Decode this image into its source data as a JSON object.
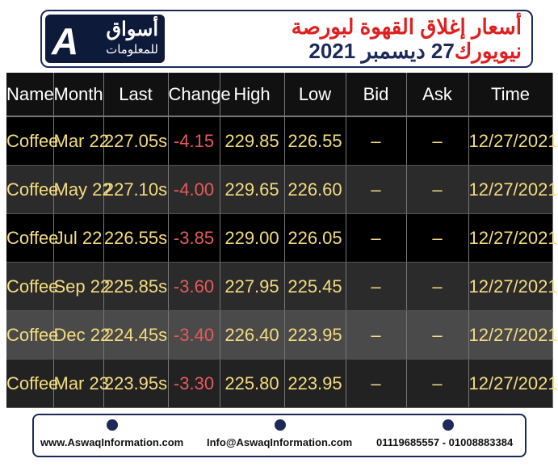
{
  "header": {
    "logo_main": "أسواق",
    "logo_sub": "للمعلومات",
    "title_line1": "أسعار إغلاق القهوة لبورصة",
    "title_line2_city": "نيويورك",
    "title_line2_date": "27 ديسمبر 2021"
  },
  "table": {
    "columns": [
      "Name",
      "Month",
      "Last",
      "Change",
      "High",
      "Low",
      "Bid",
      "Ask",
      "Time"
    ],
    "rows": [
      [
        "Coffee",
        "Mar 22",
        "227.05s",
        "-4.15",
        "229.85",
        "226.55",
        "–",
        "–",
        "12/27/2021"
      ],
      [
        "Coffee",
        "May 22",
        "227.10s",
        "-4.00",
        "229.65",
        "226.60",
        "–",
        "–",
        "12/27/2021"
      ],
      [
        "Coffee",
        "Jul 22",
        "226.55s",
        "-3.85",
        "229.00",
        "226.05",
        "–",
        "–",
        "12/27/2021"
      ],
      [
        "Coffee",
        "Sep 22",
        "225.85s",
        "-3.60",
        "227.95",
        "225.45",
        "–",
        "–",
        "12/27/2021"
      ],
      [
        "Coffee",
        "Dec 22",
        "224.45s",
        "-3.40",
        "226.40",
        "223.95",
        "–",
        "–",
        "12/27/2021"
      ],
      [
        "Coffee",
        "Mar 23",
        "223.95s",
        "-3.30",
        "225.80",
        "223.95",
        "–",
        "–",
        "12/27/2021"
      ]
    ]
  },
  "footer": {
    "website": "www.AswaqInformation.com",
    "email": "Info@AswaqInformation.com",
    "phones": "01119685557 - 01008883384"
  }
}
